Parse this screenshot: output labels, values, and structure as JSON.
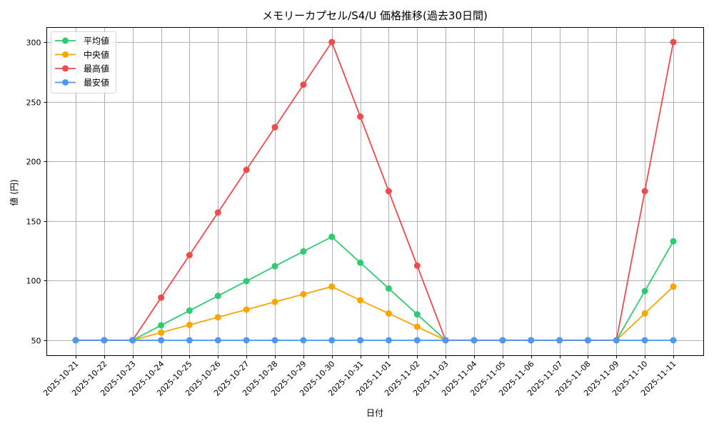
{
  "chart_data": {
    "type": "line",
    "title": "メモリーカプセル/S4/U 価格推移(過去30日間)",
    "xlabel": "日付",
    "ylabel": "値 (円)",
    "ylim": [
      37,
      312
    ],
    "yticks": [
      50,
      100,
      150,
      200,
      250,
      300
    ],
    "grid": true,
    "legend_position": "upper left",
    "categories": [
      "2025-10-21",
      "2025-10-22",
      "2025-10-23",
      "2025-10-24",
      "2025-10-25",
      "2025-10-26",
      "2025-10-27",
      "2025-10-28",
      "2025-10-29",
      "2025-10-30",
      "2025-10-31",
      "2025-11-01",
      "2025-11-02",
      "2025-11-03",
      "2025-11-04",
      "2025-11-05",
      "2025-11-06",
      "2025-11-07",
      "2025-11-08",
      "2025-11-09",
      "2025-11-10",
      "2025-11-11"
    ],
    "series": [
      {
        "name": "平均値",
        "color": "#2ecc71",
        "values": [
          50,
          50,
          50,
          62.5,
          74.9,
          87.2,
          99.6,
          112.1,
          124.5,
          136.7,
          115.1,
          93.4,
          71.7,
          50,
          50,
          50,
          50,
          50,
          50,
          50,
          91.2,
          133.0
        ]
      },
      {
        "name": "中央値",
        "color": "#f9a602",
        "values": [
          50,
          50,
          50,
          56.4,
          62.9,
          69.3,
          75.7,
          82.1,
          88.6,
          95.0,
          83.5,
          72.5,
          61.3,
          50,
          50,
          50,
          50,
          50,
          50,
          50,
          72.5,
          95.0
        ]
      },
      {
        "name": "最高値",
        "color": "#f24a4a",
        "values": [
          50,
          50,
          50,
          85.7,
          121.4,
          157.1,
          192.9,
          228.6,
          264.3,
          300,
          237.5,
          175,
          112.5,
          50,
          50,
          50,
          50,
          50,
          50,
          50,
          175,
          300
        ]
      },
      {
        "name": "最安値",
        "color": "#4a9af5",
        "values": [
          50,
          50,
          50,
          50,
          50,
          50,
          50,
          50,
          50,
          50,
          50,
          50,
          50,
          50,
          50,
          50,
          50,
          50,
          50,
          50,
          50,
          50
        ]
      }
    ]
  }
}
